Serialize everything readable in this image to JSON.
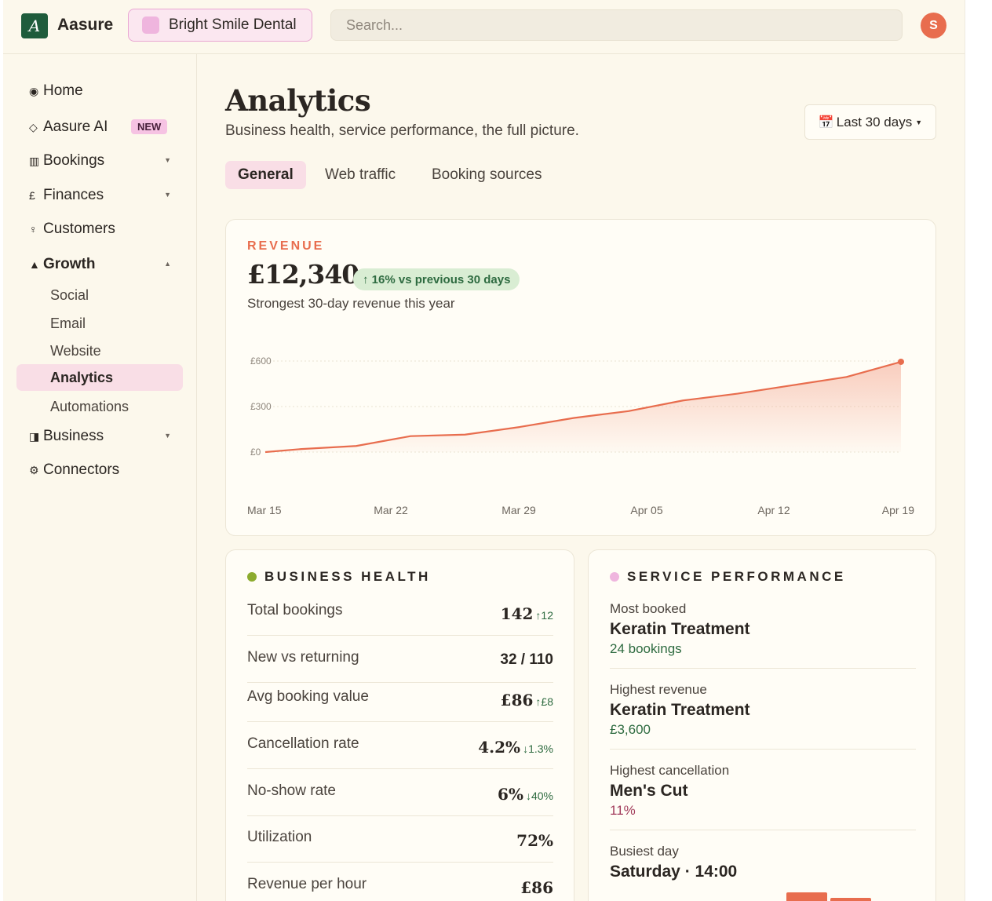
{
  "app": {
    "brand": "Aasure",
    "logo_letter": "A",
    "org_name": "Bright Smile Dental",
    "avatar_initial": "S"
  },
  "search": {
    "placeholder": "Search..."
  },
  "sidebar": {
    "items": [
      {
        "icon": "◉",
        "label": "Home"
      },
      {
        "icon": "◇",
        "label": "Aasure AI",
        "badge": "NEW"
      },
      {
        "icon": "▥",
        "label": "Bookings"
      },
      {
        "icon": "£",
        "label": "Finances"
      },
      {
        "icon": "♀",
        "label": "Customers"
      },
      {
        "icon": "▲",
        "label": "Growth"
      },
      {
        "icon": "◨",
        "label": "Business"
      },
      {
        "icon": "⚙",
        "label": "Connectors"
      }
    ],
    "growth_sub": [
      "Social",
      "Email",
      "Website",
      "Analytics",
      "Automations"
    ]
  },
  "page": {
    "title": "Analytics",
    "subtitle": "Business health, service performance, the full picture.",
    "range_label": "Last 30 days",
    "tabs": [
      "General",
      "Web traffic",
      "Booking sources"
    ]
  },
  "revenue": {
    "label": "REVENUE",
    "value": "£12,340",
    "pill": "↑ 16% vs previous 30 days",
    "note": "Strongest 30-day revenue this year"
  },
  "chart_data": {
    "type": "area",
    "title": "",
    "x_tick_labels": [
      "Mar 15",
      "Mar 22",
      "Mar 29",
      "Apr 05",
      "Apr 12",
      "Apr 19"
    ],
    "y_tick_labels": [
      "£0",
      "£300",
      "£600"
    ],
    "ylim": [
      0,
      600
    ],
    "grid": true,
    "color": "#e86d4e",
    "series": [
      {
        "values": [
          {
            "x": "Mar 15",
            "y": 0
          },
          {
            "x": "Mar 17",
            "y": 20
          },
          {
            "x": "Mar 20",
            "y": 40
          },
          {
            "x": "Mar 23",
            "y": 105
          },
          {
            "x": "Mar 26",
            "y": 115
          },
          {
            "x": "Mar 29",
            "y": 165
          },
          {
            "x": "Apr 01",
            "y": 225
          },
          {
            "x": "Apr 04",
            "y": 270
          },
          {
            "x": "Apr 07",
            "y": 340
          },
          {
            "x": "Apr 10",
            "y": 385
          },
          {
            "x": "Apr 13",
            "y": 440
          },
          {
            "x": "Apr 16",
            "y": 495
          },
          {
            "x": "Apr 19",
            "y": 595
          }
        ]
      }
    ]
  },
  "health": {
    "heading": "BUSINESS HEALTH",
    "dot_color": "#8cab2e",
    "metrics": [
      {
        "label": "Total bookings",
        "value": "142",
        "delta": "↑12"
      },
      {
        "label": "New vs returning",
        "value": "32 / 110",
        "delta": ""
      },
      {
        "label": "Avg booking value",
        "value": "£86",
        "delta": "↑£8"
      },
      {
        "label": "Cancellation rate",
        "value": "4.2%",
        "delta": "↓1.3%"
      },
      {
        "label": "No-show rate",
        "value": "6%",
        "delta": "↓40%"
      },
      {
        "label": "Utilization",
        "value": "72%",
        "delta": ""
      },
      {
        "label": "Revenue per hour",
        "value": "£86",
        "delta": ""
      }
    ]
  },
  "performance": {
    "heading": "SERVICE PERFORMANCE",
    "dot_color": "#efb5de",
    "items": [
      {
        "key": "Most booked",
        "value": "Keratin Treatment",
        "sub": "24 bookings"
      },
      {
        "key": "Highest revenue",
        "value": "Keratin Treatment",
        "sub": "£3,600"
      },
      {
        "key": "Highest cancellation",
        "value": "Men's Cut",
        "sub": "11%"
      },
      {
        "key": "Busiest day",
        "value": "Saturday · 14:00",
        "sub": ""
      }
    ],
    "busiest_day_bar_levels": [
      0.1,
      0.2,
      0.14
    ]
  }
}
